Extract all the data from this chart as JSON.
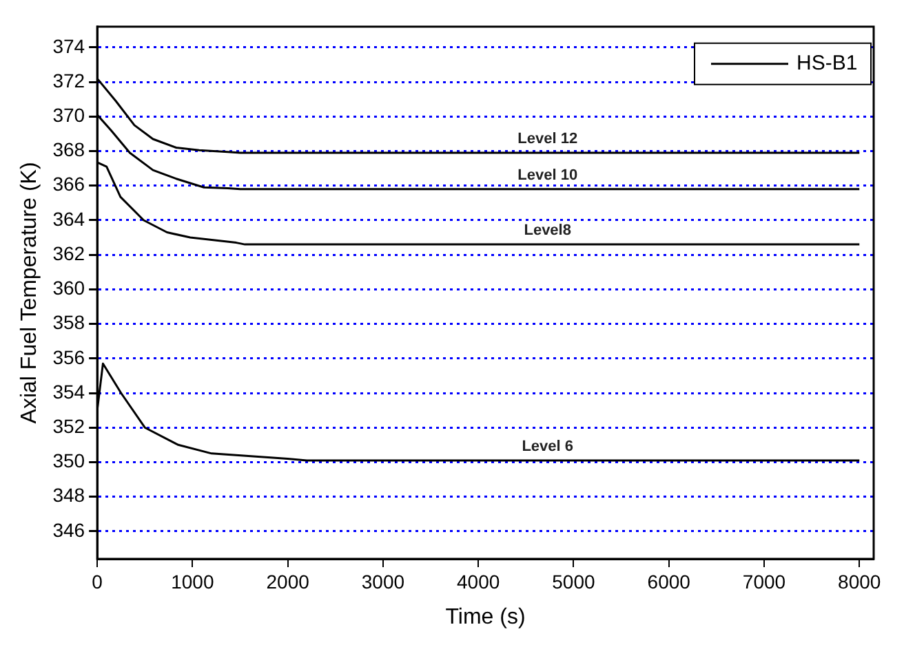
{
  "chart_data": {
    "type": "line",
    "xlabel": "Time (s)",
    "ylabel": "Axial Fuel Temperature (K)",
    "xlim": [
      0,
      8150
    ],
    "xticks": [
      0,
      1000,
      2000,
      3000,
      4000,
      5000,
      6000,
      7000,
      8000
    ],
    "ylim": [
      344.4,
      375.2
    ],
    "yticks": [
      346,
      348,
      350,
      352,
      354,
      356,
      358,
      360,
      362,
      364,
      366,
      368,
      370,
      372,
      374
    ],
    "grid": "y",
    "legend": "top right",
    "marker": "none",
    "line_style": "solid",
    "series": [
      {
        "name": "HS-B1",
        "color": "#000000",
        "x": [
          0,
          195,
          390,
          585,
          830,
          1070,
          1370,
          1500,
          8000
        ],
        "values": [
          372.2,
          370.9,
          369.5,
          368.7,
          368.2,
          368.05,
          367.95,
          367.9,
          367.9
        ]
      },
      {
        "color": "#000000",
        "x": [
          0,
          146,
          342,
          585,
          830,
          1120,
          1370,
          1500,
          8000
        ],
        "values": [
          370.1,
          369.2,
          367.9,
          366.9,
          366.4,
          365.9,
          365.85,
          365.8,
          365.8
        ]
      },
      {
        "color": "#000000",
        "x": [
          0,
          98,
          244,
          488,
          732,
          976,
          1460,
          1550,
          8000
        ],
        "values": [
          367.35,
          367.1,
          365.35,
          364.0,
          363.3,
          363.0,
          362.7,
          362.6,
          362.6
        ]
      },
      {
        "color": "#000000",
        "x": [
          0,
          60,
          250,
          500,
          850,
          1200,
          2000,
          2200,
          8000
        ],
        "values": [
          353,
          355.7,
          354,
          352,
          351,
          350.5,
          350.2,
          350.1,
          350.1
        ]
      }
    ],
    "annotations": [
      "Level 12",
      "Level 10",
      "Level8",
      "Level 6"
    ]
  }
}
